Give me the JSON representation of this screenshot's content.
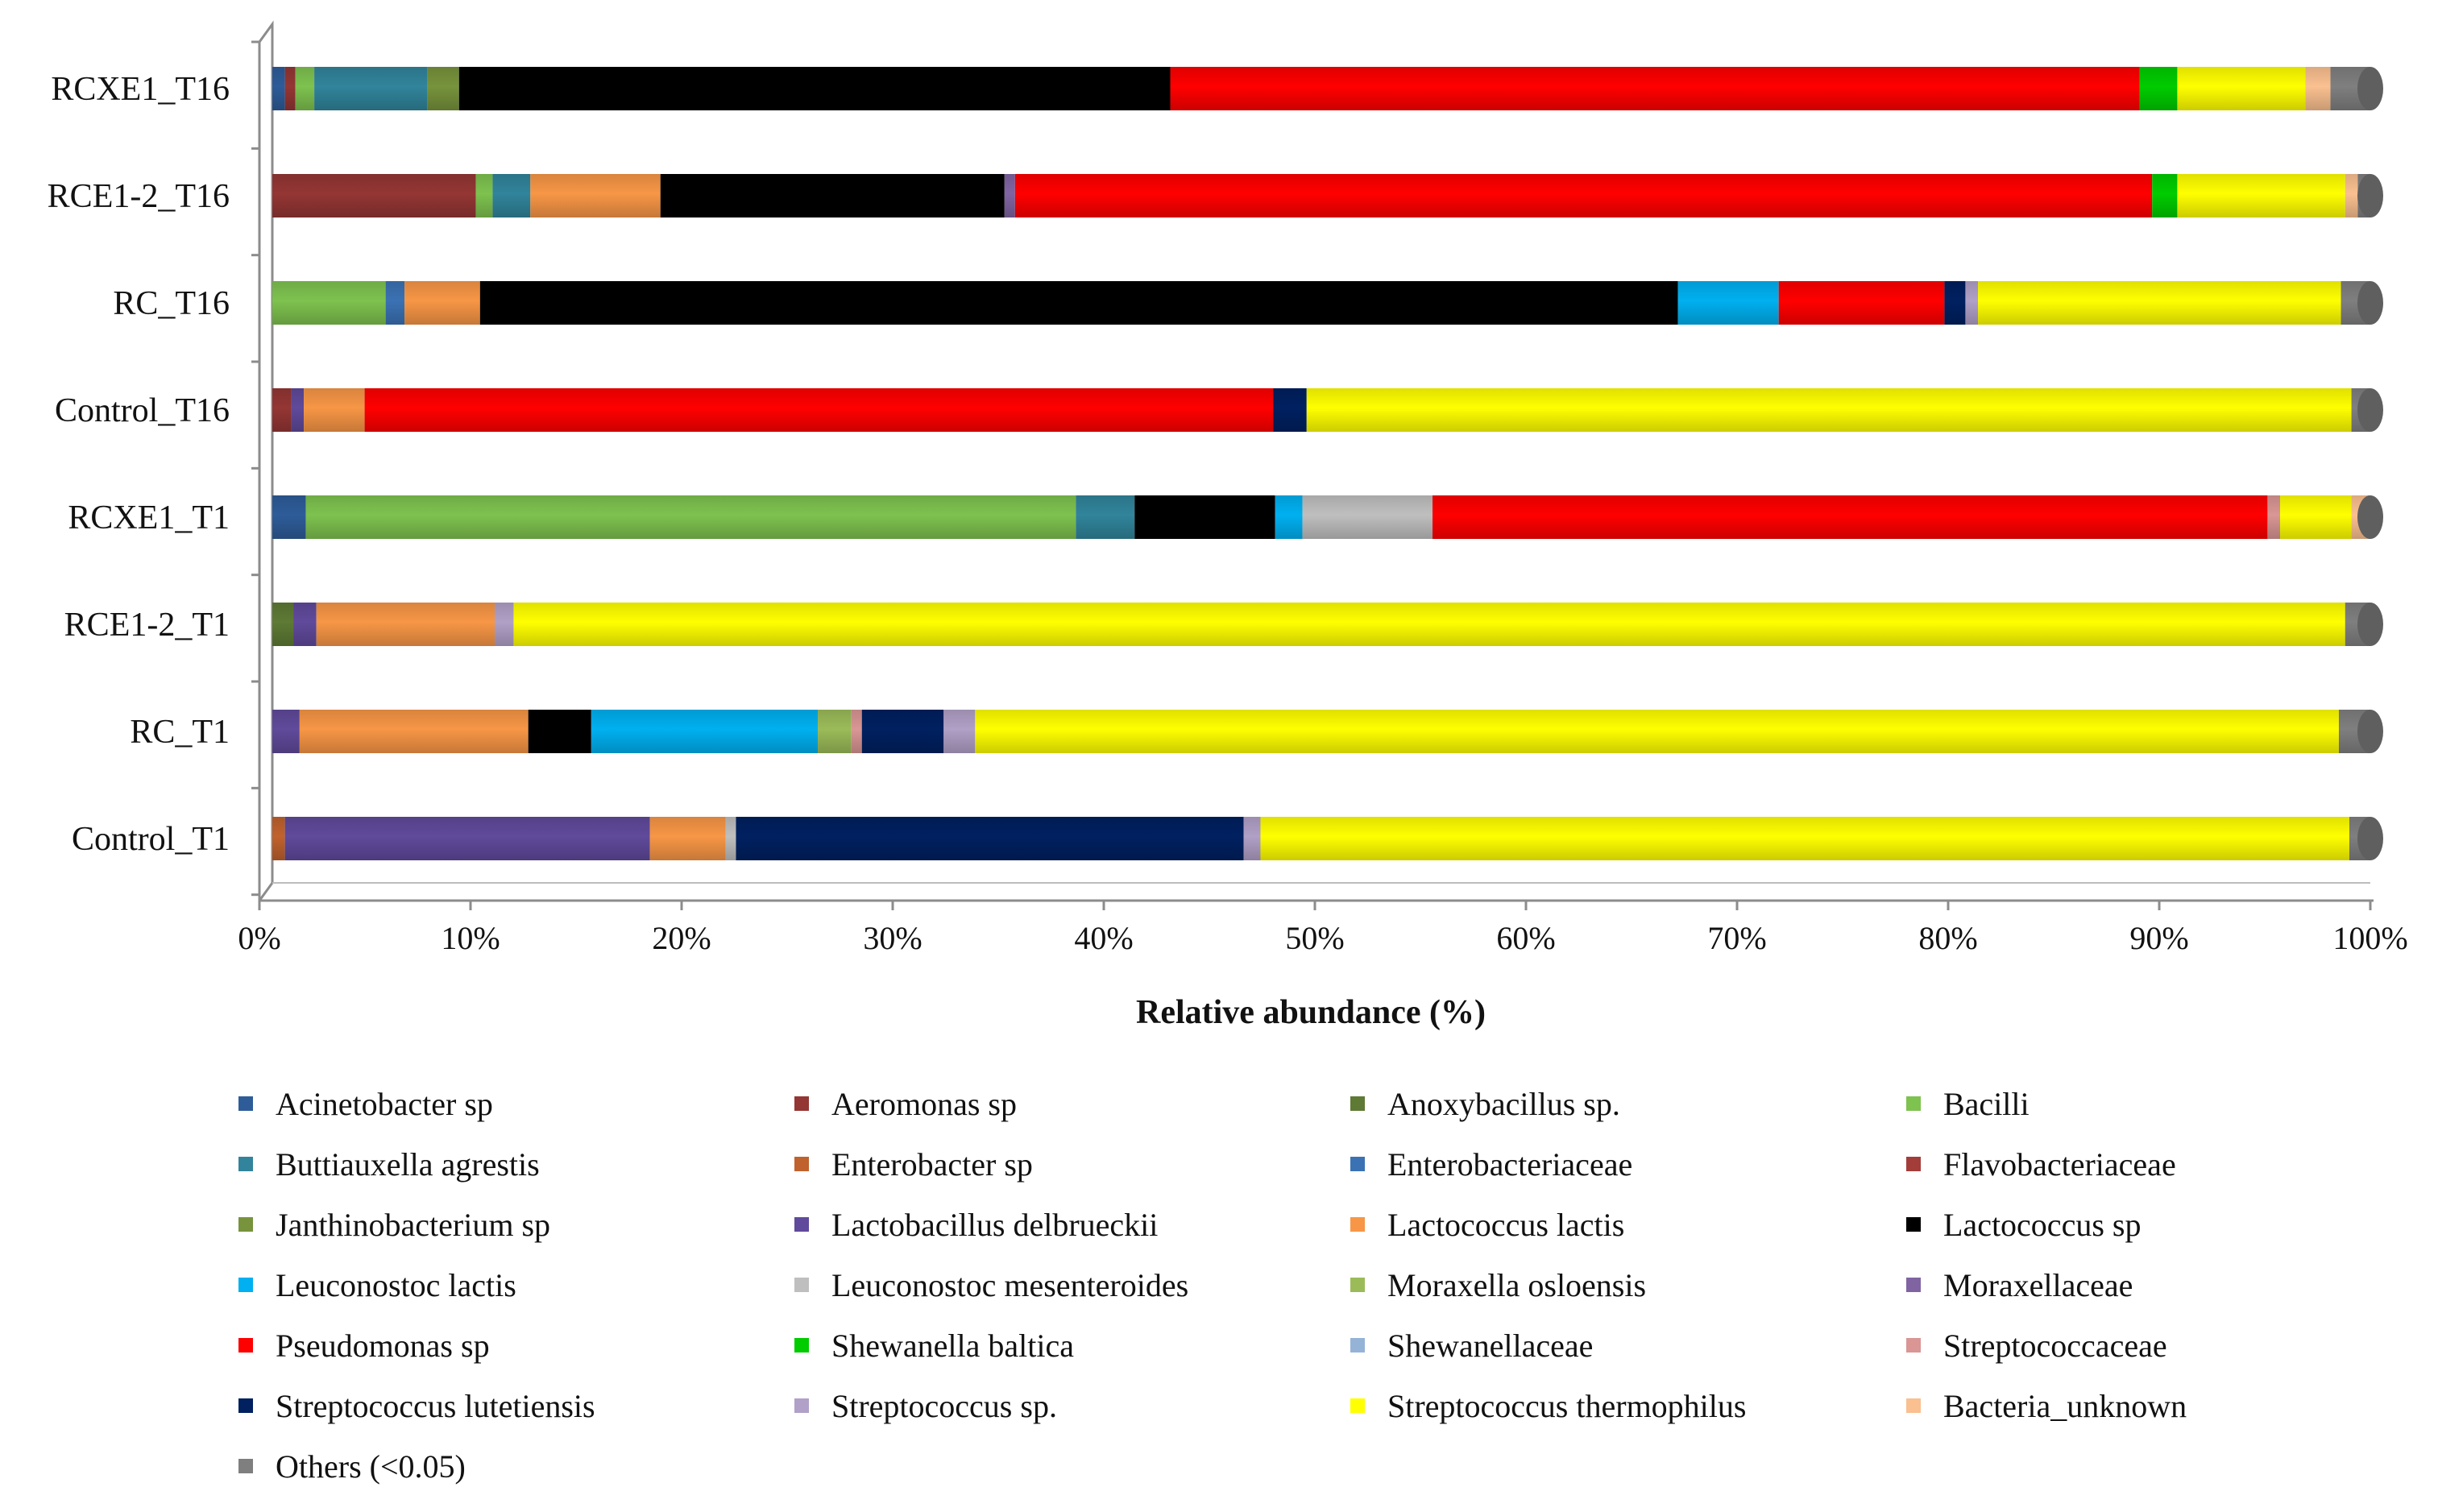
{
  "chart_data": {
    "type": "bar",
    "orientation": "horizontal",
    "stacked": true,
    "xlabel": "Relative abundance (%)",
    "xlim": [
      0,
      100
    ],
    "xticks": [
      "0%",
      "10%",
      "20%",
      "30%",
      "40%",
      "50%",
      "60%",
      "70%",
      "80%",
      "90%",
      "100%"
    ],
    "legend_position": "bottom",
    "categories": [
      "RCXE1_T16",
      "RCE1-2_T16",
      "RC_T16",
      "Control_T16",
      "RCXE1_T1",
      "RCE1-2_T1",
      "RC_T1",
      "Control_T1"
    ],
    "series": [
      {
        "name": "Acinetobacter sp",
        "color": "#2e5c99",
        "values": [
          0.6,
          0,
          0,
          0,
          1.6,
          0,
          0,
          0
        ]
      },
      {
        "name": "Aeromonas sp",
        "color": "#943634",
        "values": [
          0.5,
          9.7,
          0,
          0.9,
          0,
          0,
          0,
          0
        ]
      },
      {
        "name": "Anoxybacillus sp.",
        "color": "#5e7a35",
        "values": [
          0,
          0,
          0,
          0,
          0,
          1.0,
          0,
          0
        ]
      },
      {
        "name": "Bacilli",
        "color": "#7ec24f",
        "values": [
          0.9,
          0.8,
          5.4,
          0,
          36.7,
          0,
          0,
          0
        ]
      },
      {
        "name": "Buttiauxella agrestis",
        "color": "#31849b",
        "values": [
          5.4,
          1.8,
          0,
          0,
          2.8,
          0,
          0,
          0
        ]
      },
      {
        "name": "Enterobacter sp",
        "color": "#c0622d",
        "values": [
          0,
          0,
          0,
          0,
          0,
          0,
          0,
          0.6
        ]
      },
      {
        "name": "Enterobacteriaceae",
        "color": "#3b72b4",
        "values": [
          0,
          0,
          0.9,
          0,
          0,
          0,
          0,
          0
        ]
      },
      {
        "name": "Flavobacteriaceae",
        "color": "#a33d3a",
        "values": [
          0,
          0,
          0,
          0,
          0,
          0,
          0,
          0
        ]
      },
      {
        "name": "Janthinobacterium sp",
        "color": "#77933c",
        "values": [
          1.5,
          0,
          0,
          0,
          0,
          0,
          0,
          0
        ]
      },
      {
        "name": "Lactobacillus delbrueckii",
        "color": "#604a9b",
        "values": [
          0,
          0,
          0,
          0.6,
          0,
          1.1,
          1.3,
          17.4
        ]
      },
      {
        "name": "Lactococcus lactis",
        "color": "#f79646",
        "values": [
          0,
          6.2,
          3.6,
          2.9,
          0,
          8.5,
          10.9,
          3.6
        ]
      },
      {
        "name": "Lactococcus sp",
        "color": "#000000",
        "values": [
          33.9,
          16.4,
          57.1,
          0,
          6.7,
          0,
          3.0,
          0
        ]
      },
      {
        "name": "Leuconostoc lactis",
        "color": "#00b0f0",
        "values": [
          0,
          0,
          4.8,
          0,
          1.3,
          0,
          10.8,
          0
        ]
      },
      {
        "name": "Leuconostoc mesenteroides",
        "color": "#bfbfbf",
        "values": [
          0,
          0,
          0,
          0,
          6.2,
          0,
          0,
          0.5
        ]
      },
      {
        "name": "Moraxella osloensis",
        "color": "#9bbb59",
        "values": [
          0,
          0,
          0,
          0,
          0,
          0,
          1.6,
          0
        ]
      },
      {
        "name": "Moraxellaceae",
        "color": "#8064a2",
        "values": [
          0,
          0.5,
          0,
          0,
          0,
          0,
          0,
          0
        ]
      },
      {
        "name": "Pseudomonas sp",
        "color": "#ff0000",
        "values": [
          46.2,
          54.2,
          7.9,
          43.3,
          39.8,
          0,
          0,
          0
        ]
      },
      {
        "name": "Shewanella baltica",
        "color": "#00cc00",
        "values": [
          1.8,
          1.2,
          0,
          0,
          0,
          0,
          0,
          0
        ]
      },
      {
        "name": "Shewanellaceae",
        "color": "#95b3d7",
        "values": [
          0,
          0,
          0,
          0,
          0,
          0,
          0,
          0
        ]
      },
      {
        "name": "Streptococcaceae",
        "color": "#d99694",
        "values": [
          0,
          0,
          0,
          0,
          0.6,
          0,
          0.5,
          0
        ]
      },
      {
        "name": "Streptococcus lutetiensis",
        "color": "#002060",
        "values": [
          0,
          0,
          1.0,
          1.6,
          0,
          0,
          3.9,
          24.2
        ]
      },
      {
        "name": "Streptococcus sp.",
        "color": "#b1a0c7",
        "values": [
          0,
          0,
          0.6,
          0,
          0,
          0.9,
          1.5,
          0.8
        ]
      },
      {
        "name": "Streptococcus thermophilus",
        "color": "#ffff00",
        "values": [
          6.1,
          8.0,
          17.3,
          49.8,
          3.4,
          87.3,
          65.0,
          51.9
        ]
      },
      {
        "name": "Bacteria_unknown",
        "color": "#fac090",
        "values": [
          1.2,
          0.6,
          0,
          0,
          0.8,
          0,
          0,
          0
        ]
      },
      {
        "name": "Others (<0.05)",
        "color": "#7f7f7f",
        "values": [
          1.9,
          0.6,
          1.4,
          0.9,
          0.1,
          1.2,
          1.5,
          1.0
        ]
      }
    ]
  }
}
